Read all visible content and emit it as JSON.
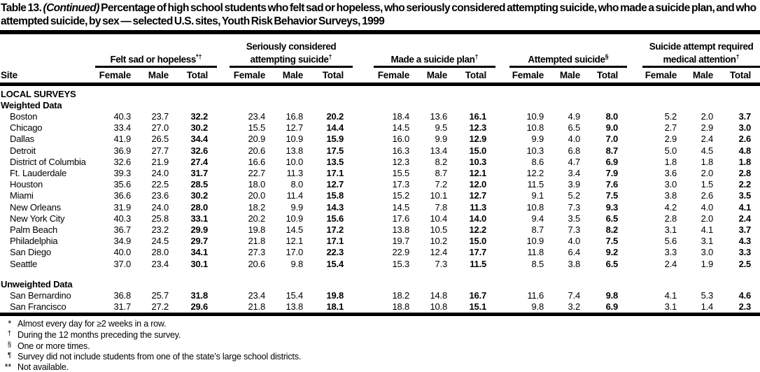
{
  "title": {
    "prefix": "Table 13.",
    "continued": "(Continued)",
    "rest": "Percentage of high school students who felt sad or hopeless, who seriously considered attempting suicide, who made a suicide plan, and who attempted suicide, by sex — selected U.S. sites, Youth Risk Behavior Surveys, 1999"
  },
  "table": {
    "site_header": "Site",
    "sub_headers": [
      "Female",
      "Male",
      "Total"
    ],
    "groups": [
      {
        "label": "Felt sad or hopeless",
        "sup": "*†"
      },
      {
        "label": "Seriously considered attempting suicide",
        "sup": "†"
      },
      {
        "label": "Made a suicide plan",
        "sup": "†"
      },
      {
        "label": "Attempted suicide",
        "sup": "§"
      },
      {
        "label": "Suicide attempt required medical attention",
        "sup": "†"
      }
    ],
    "sections": [
      {
        "label": "LOCAL SURVEYS",
        "subsections": [
          {
            "label": "Weighted Data",
            "rows": [
              {
                "site": "Boston",
                "values": [
                  "40.3",
                  "23.7",
                  "32.2",
                  "23.4",
                  "16.8",
                  "20.2",
                  "18.4",
                  "13.6",
                  "16.1",
                  "10.9",
                  "4.9",
                  "8.0",
                  "5.2",
                  "2.0",
                  "3.7"
                ]
              },
              {
                "site": "Chicago",
                "values": [
                  "33.4",
                  "27.0",
                  "30.2",
                  "15.5",
                  "12.7",
                  "14.4",
                  "14.5",
                  "9.5",
                  "12.3",
                  "10.8",
                  "6.5",
                  "9.0",
                  "2.7",
                  "2.9",
                  "3.0"
                ]
              },
              {
                "site": "Dallas",
                "values": [
                  "41.9",
                  "26.5",
                  "34.4",
                  "20.9",
                  "10.9",
                  "15.9",
                  "16.0",
                  "9.9",
                  "12.9",
                  "9.9",
                  "4.0",
                  "7.0",
                  "2.9",
                  "2.4",
                  "2.6"
                ]
              },
              {
                "site": "Detroit",
                "values": [
                  "36.9",
                  "27.7",
                  "32.6",
                  "20.6",
                  "13.8",
                  "17.5",
                  "16.3",
                  "13.4",
                  "15.0",
                  "10.3",
                  "6.8",
                  "8.7",
                  "5.0",
                  "4.5",
                  "4.8"
                ]
              },
              {
                "site": "District of Columbia",
                "values": [
                  "32.6",
                  "21.9",
                  "27.4",
                  "16.6",
                  "10.0",
                  "13.5",
                  "12.3",
                  "8.2",
                  "10.3",
                  "8.6",
                  "4.7",
                  "6.9",
                  "1.8",
                  "1.8",
                  "1.8"
                ]
              },
              {
                "site": "Ft. Lauderdale",
                "values": [
                  "39.3",
                  "24.0",
                  "31.7",
                  "22.7",
                  "11.3",
                  "17.1",
                  "15.5",
                  "8.7",
                  "12.1",
                  "12.2",
                  "3.4",
                  "7.9",
                  "3.6",
                  "2.0",
                  "2.8"
                ]
              },
              {
                "site": "Houston",
                "values": [
                  "35.6",
                  "22.5",
                  "28.5",
                  "18.0",
                  "8.0",
                  "12.7",
                  "17.3",
                  "7.2",
                  "12.0",
                  "11.5",
                  "3.9",
                  "7.6",
                  "3.0",
                  "1.5",
                  "2.2"
                ]
              },
              {
                "site": "Miami",
                "values": [
                  "36.6",
                  "23.6",
                  "30.2",
                  "20.0",
                  "11.4",
                  "15.8",
                  "15.2",
                  "10.1",
                  "12.7",
                  "9.1",
                  "5.2",
                  "7.5",
                  "3.8",
                  "2.6",
                  "3.5"
                ]
              },
              {
                "site": "New Orleans",
                "values": [
                  "31.9",
                  "24.0",
                  "28.0",
                  "18.2",
                  "9.9",
                  "14.3",
                  "14.5",
                  "7.8",
                  "11.3",
                  "10.8",
                  "7.3",
                  "9.3",
                  "4.2",
                  "4.0",
                  "4.1"
                ]
              },
              {
                "site": "New York City",
                "values": [
                  "40.3",
                  "25.8",
                  "33.1",
                  "20.2",
                  "10.9",
                  "15.6",
                  "17.6",
                  "10.4",
                  "14.0",
                  "9.4",
                  "3.5",
                  "6.5",
                  "2.8",
                  "2.0",
                  "2.4"
                ]
              },
              {
                "site": "Palm Beach",
                "values": [
                  "36.7",
                  "23.2",
                  "29.9",
                  "19.8",
                  "14.5",
                  "17.2",
                  "13.8",
                  "10.5",
                  "12.2",
                  "8.7",
                  "7.3",
                  "8.2",
                  "3.1",
                  "4.1",
                  "3.7"
                ]
              },
              {
                "site": "Philadelphia",
                "values": [
                  "34.9",
                  "24.5",
                  "29.7",
                  "21.8",
                  "12.1",
                  "17.1",
                  "19.7",
                  "10.2",
                  "15.0",
                  "10.9",
                  "4.0",
                  "7.5",
                  "5.6",
                  "3.1",
                  "4.3"
                ]
              },
              {
                "site": "San Diego",
                "values": [
                  "40.0",
                  "28.0",
                  "34.1",
                  "27.3",
                  "17.0",
                  "22.3",
                  "22.9",
                  "12.4",
                  "17.7",
                  "11.8",
                  "6.4",
                  "9.2",
                  "3.3",
                  "3.0",
                  "3.3"
                ]
              },
              {
                "site": "Seattle",
                "values": [
                  "37.0",
                  "23.4",
                  "30.1",
                  "20.6",
                  "9.8",
                  "15.4",
                  "15.3",
                  "7.3",
                  "11.5",
                  "8.5",
                  "3.8",
                  "6.5",
                  "2.4",
                  "1.9",
                  "2.5"
                ]
              }
            ]
          },
          {
            "label": "Unweighted Data",
            "rows": [
              {
                "site": "San Bernardino",
                "values": [
                  "36.8",
                  "25.7",
                  "31.8",
                  "23.4",
                  "15.4",
                  "19.8",
                  "18.2",
                  "14.8",
                  "16.7",
                  "11.6",
                  "7.4",
                  "9.8",
                  "4.1",
                  "5.3",
                  "4.6"
                ]
              },
              {
                "site": "San Francisco",
                "values": [
                  "31.7",
                  "27.2",
                  "29.6",
                  "21.8",
                  "13.8",
                  "18.1",
                  "18.8",
                  "10.8",
                  "15.1",
                  "9.8",
                  "3.2",
                  "6.9",
                  "3.1",
                  "1.4",
                  "2.3"
                ]
              }
            ]
          }
        ]
      }
    ]
  },
  "footnotes": [
    {
      "marker": "*",
      "text": "Almost every day for ≥2 weeks in a row."
    },
    {
      "marker": "†",
      "text": "During the 12 months preceding the survey."
    },
    {
      "marker": "§",
      "text": "One or more times."
    },
    {
      "marker": "¶",
      "text": "Survey did not include students from one of the state’s large school districts."
    },
    {
      "marker": "**",
      "text": "Not available."
    }
  ]
}
